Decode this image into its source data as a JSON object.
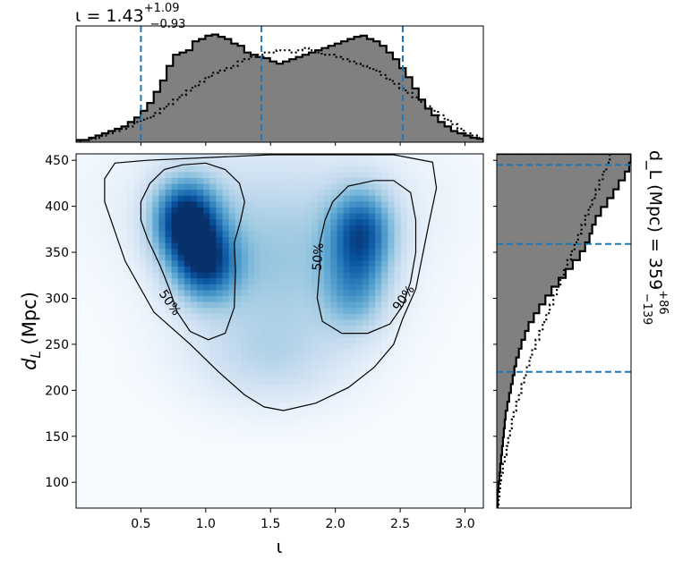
{
  "chart_data": [
    {
      "type": "heatmap",
      "xlabel": "ι",
      "ylabel": "d_L (Mpc)",
      "xlim": [
        0,
        3.1416
      ],
      "ylim": [
        72,
        457
      ],
      "x_ticks": [
        "0.5",
        "1.0",
        "1.5",
        "2.0",
        "2.5",
        "3.0"
      ],
      "x_tick_values": [
        0.5,
        1.0,
        1.5,
        2.0,
        2.5,
        3.0
      ],
      "y_ticks": [
        "100",
        "150",
        "200",
        "250",
        "300",
        "350",
        "400",
        "450"
      ],
      "y_tick_values": [
        100,
        150,
        200,
        250,
        300,
        350,
        400,
        450
      ],
      "colormap": "Blues",
      "density_peaks": [
        {
          "x": 0.85,
          "y": 385,
          "weight": 1.0
        },
        {
          "x": 1.0,
          "y": 340,
          "weight": 0.75
        },
        {
          "x": 2.2,
          "y": 370,
          "weight": 0.7
        }
      ],
      "contours": [
        {
          "label": "50%",
          "label_positions": [
            {
              "x": 0.72,
              "y": 295,
              "angle": 55
            },
            {
              "x": 1.87,
              "y": 345,
              "angle": -85
            }
          ],
          "paths": [
            [
              [
                0.82,
                445
              ],
              [
                0.68,
                440
              ],
              [
                0.57,
                425
              ],
              [
                0.5,
                405
              ],
              [
                0.5,
                385
              ],
              [
                0.55,
                365
              ],
              [
                0.65,
                335
              ],
              [
                0.72,
                310
              ],
              [
                0.78,
                285
              ],
              [
                0.88,
                264
              ],
              [
                1.02,
                255
              ],
              [
                1.15,
                262
              ],
              [
                1.22,
                290
              ],
              [
                1.23,
                330
              ],
              [
                1.22,
                360
              ],
              [
                1.27,
                385
              ],
              [
                1.3,
                405
              ],
              [
                1.26,
                425
              ],
              [
                1.15,
                440
              ],
              [
                1.0,
                447
              ],
              [
                0.82,
                445
              ]
            ],
            [
              [
                2.3,
                428
              ],
              [
                2.1,
                422
              ],
              [
                1.98,
                405
              ],
              [
                1.92,
                385
              ],
              [
                1.88,
                360
              ],
              [
                1.88,
                335
              ],
              [
                1.86,
                300
              ],
              [
                1.9,
                275
              ],
              [
                2.05,
                262
              ],
              [
                2.25,
                262
              ],
              [
                2.42,
                272
              ],
              [
                2.52,
                292
              ],
              [
                2.58,
                318
              ],
              [
                2.62,
                350
              ],
              [
                2.62,
                385
              ],
              [
                2.58,
                415
              ],
              [
                2.45,
                428
              ],
              [
                2.3,
                428
              ]
            ]
          ]
        },
        {
          "label": "90%",
          "label_positions": [
            {
              "x": 2.53,
              "y": 300,
              "angle": -55
            }
          ],
          "paths": [
            [
              [
                0.55,
                450
              ],
              [
                1.5,
                456
              ],
              [
                2.45,
                456
              ],
              [
                2.75,
                448
              ],
              [
                2.78,
                420
              ],
              [
                2.72,
                380
              ],
              [
                2.62,
                310
              ],
              [
                2.52,
                278
              ],
              [
                2.45,
                250
              ],
              [
                2.3,
                225
              ],
              [
                2.1,
                203
              ],
              [
                1.85,
                186
              ],
              [
                1.6,
                178
              ],
              [
                1.45,
                182
              ],
              [
                1.3,
                195
              ],
              [
                1.1,
                220
              ],
              [
                0.88,
                250
              ],
              [
                0.6,
                285
              ],
              [
                0.38,
                340
              ],
              [
                0.22,
                405
              ],
              [
                0.22,
                430
              ],
              [
                0.3,
                447
              ],
              [
                0.55,
                450
              ]
            ]
          ]
        }
      ]
    },
    {
      "type": "histogram",
      "title": "ι = 1.43^{+1.09}_{-0.93}",
      "title_main": "ι = 1.43",
      "title_sup": "+1.09",
      "title_sub": "−0.93",
      "xlim": [
        0,
        3.1416
      ],
      "bins": 63,
      "posterior_counts": [
        2,
        2,
        4,
        6,
        8,
        10,
        12,
        14,
        18,
        22,
        28,
        35,
        45,
        55,
        68,
        78,
        80,
        82,
        90,
        92,
        95,
        96,
        94,
        92,
        88,
        86,
        80,
        78,
        76,
        75,
        72,
        70,
        72,
        74,
        76,
        78,
        80,
        82,
        84,
        86,
        88,
        90,
        92,
        94,
        95,
        92,
        90,
        86,
        80,
        74,
        66,
        58,
        48,
        38,
        30,
        24,
        18,
        14,
        10,
        8,
        6,
        4,
        3
      ],
      "prior_counts": [
        1,
        2,
        3,
        4,
        6,
        8,
        10,
        12,
        14,
        18,
        20,
        22,
        26,
        30,
        34,
        38,
        42,
        46,
        50,
        54,
        58,
        62,
        64,
        66,
        68,
        72,
        74,
        76,
        78,
        80,
        80,
        82,
        82,
        80,
        82,
        84,
        82,
        80,
        78,
        78,
        76,
        74,
        72,
        70,
        68,
        66,
        64,
        60,
        56,
        52,
        48,
        44,
        40,
        36,
        32,
        28,
        24,
        20,
        16,
        12,
        8,
        6,
        4
      ],
      "quantile_lines": [
        0.5,
        1.43,
        2.52
      ]
    },
    {
      "type": "histogram",
      "title": "d_L (Mpc) = 359^{+86}_{-139}",
      "title_main": "d_L (Mpc) = 359",
      "title_sup": "+86",
      "title_sub": "−139",
      "orientation": "horizontal",
      "ylim": [
        72,
        457
      ],
      "bins": 40,
      "posterior_counts": [
        1,
        1,
        2,
        3,
        4,
        5,
        6,
        7,
        8,
        9,
        10,
        12,
        14,
        16,
        18,
        20,
        22,
        25,
        28,
        32,
        36,
        42,
        48,
        55,
        62,
        70,
        78,
        86,
        94,
        100,
        105,
        108,
        112,
        118,
        125,
        132,
        138,
        145,
        150,
        152
      ],
      "prior_counts": [
        2,
        3,
        4,
        5,
        7,
        9,
        11,
        13,
        15,
        17,
        19,
        22,
        25,
        28,
        31,
        34,
        37,
        40,
        44,
        48,
        52,
        56,
        60,
        64,
        68,
        72,
        76,
        80,
        84,
        88,
        92,
        96,
        100,
        104,
        108,
        112,
        116,
        120,
        124,
        128
      ],
      "quantile_lines": [
        220,
        359,
        445
      ]
    }
  ]
}
